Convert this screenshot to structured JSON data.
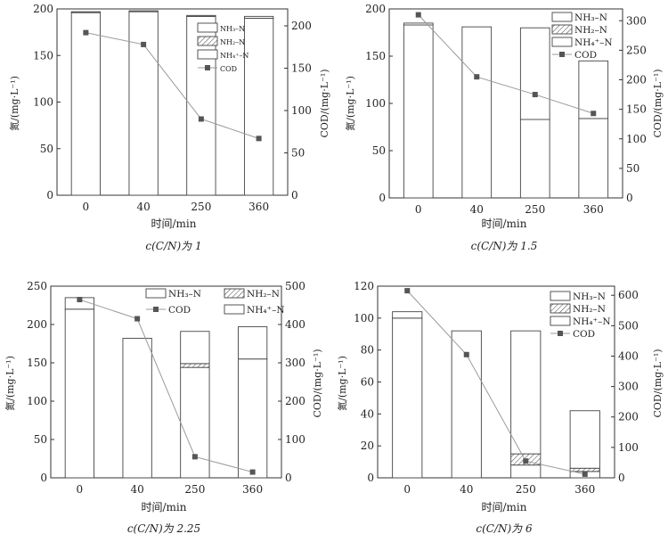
{
  "chart_data": [
    {
      "type": "bar",
      "subtitle": "c(C/N)为 1",
      "xlabel": "时间/min",
      "ylabel_left": "氮/(mg·L⁻¹)",
      "ylabel_right": "COD/(mg·L⁻¹)",
      "categories": [
        "0",
        "40",
        "250",
        "360"
      ],
      "ylim_left": [
        0,
        200
      ],
      "yticks_left": [
        0,
        50,
        100,
        150,
        200
      ],
      "ylim_right": [
        0,
        220
      ],
      "yticks_right": [
        0,
        50,
        100,
        150,
        200
      ],
      "legend": [
        "NH₃–N",
        "NH₂–N",
        "NH₄⁺–N",
        "COD"
      ],
      "series": [
        {
          "name": "NH₄⁺–N",
          "kind": "bar",
          "values": [
            196,
            197,
            192,
            190
          ]
        },
        {
          "name": "NH₂–N",
          "kind": "bar",
          "values": [
            0,
            0,
            0,
            0
          ]
        },
        {
          "name": "NH₃–N",
          "kind": "bar",
          "values": [
            1,
            1,
            1,
            2
          ]
        },
        {
          "name": "COD",
          "kind": "line",
          "values": [
            192,
            178,
            90,
            67
          ]
        }
      ]
    },
    {
      "type": "bar",
      "subtitle": "c(C/N)为 1.5",
      "xlabel": "时间/min",
      "ylabel_left": "氮/(mg·L⁻¹)",
      "ylabel_right": "COD/(mg·L⁻¹)",
      "categories": [
        "0",
        "40",
        "250",
        "360"
      ],
      "ylim_left": [
        0,
        200
      ],
      "yticks_left": [
        0,
        50,
        100,
        150,
        200
      ],
      "ylim_right": [
        0,
        320
      ],
      "yticks_right": [
        0,
        50,
        100,
        150,
        200,
        250,
        300
      ],
      "legend": [
        "NH₃–N",
        "NH₂–N",
        "NH₄⁺–N",
        "COD"
      ],
      "series": [
        {
          "name": "NH₄⁺–N",
          "kind": "bar",
          "values": [
            183,
            181,
            83,
            84
          ]
        },
        {
          "name": "NH₂–N",
          "kind": "bar",
          "values": [
            0,
            0,
            0,
            0
          ]
        },
        {
          "name": "NH₃–N",
          "kind": "bar",
          "values": [
            2,
            0,
            97,
            61
          ]
        },
        {
          "name": "COD",
          "kind": "line",
          "values": [
            310,
            205,
            175,
            143
          ]
        }
      ]
    },
    {
      "type": "bar",
      "subtitle": "c(C/N)为 2.25",
      "xlabel": "时间/min",
      "ylabel_left": "氮/(mg·L⁻¹)",
      "ylabel_right": "COD/(mg·L⁻¹)",
      "categories": [
        "0",
        "40",
        "250",
        "360"
      ],
      "ylim_left": [
        0,
        250
      ],
      "yticks_left": [
        0,
        50,
        100,
        150,
        200,
        250
      ],
      "ylim_right": [
        0,
        500
      ],
      "yticks_right": [
        0,
        100,
        200,
        300,
        400,
        500
      ],
      "legend": [
        "NH₃–N",
        "NH₂–N",
        "COD",
        "NH₄⁺–N"
      ],
      "series": [
        {
          "name": "NH₄⁺–N",
          "kind": "bar",
          "values": [
            220,
            182,
            144,
            155
          ]
        },
        {
          "name": "NH₂–N",
          "kind": "bar",
          "values": [
            0,
            0,
            5,
            0
          ]
        },
        {
          "name": "NH₃–N",
          "kind": "bar",
          "values": [
            15,
            0,
            42,
            42
          ]
        },
        {
          "name": "COD",
          "kind": "line",
          "values": [
            465,
            415,
            55,
            15
          ]
        }
      ]
    },
    {
      "type": "bar",
      "subtitle": "c(C/N)为 6",
      "xlabel": "时间/min",
      "ylabel_left": "氮/(mg·L⁻¹)",
      "ylabel_right": "COD/(mg·L⁻¹)",
      "categories": [
        "0",
        "40",
        "250",
        "360"
      ],
      "ylim_left": [
        0,
        120
      ],
      "yticks_left": [
        0,
        20,
        40,
        60,
        80,
        100,
        120
      ],
      "ylim_right": [
        0,
        630
      ],
      "yticks_right": [
        0,
        100,
        200,
        300,
        400,
        500,
        600
      ],
      "legend": [
        "NH₃–N",
        "NH₂–N",
        "NH₄⁺–N",
        "COD"
      ],
      "series": [
        {
          "name": "NH₄⁺–N",
          "kind": "bar",
          "values": [
            100,
            92,
            8,
            4
          ]
        },
        {
          "name": "NH₂–N",
          "kind": "bar",
          "values": [
            0,
            0,
            7,
            2
          ]
        },
        {
          "name": "NH₃–N",
          "kind": "bar",
          "values": [
            4,
            0,
            77,
            36
          ]
        },
        {
          "name": "COD",
          "kind": "line",
          "values": [
            615,
            405,
            55,
            12
          ]
        }
      ]
    }
  ]
}
